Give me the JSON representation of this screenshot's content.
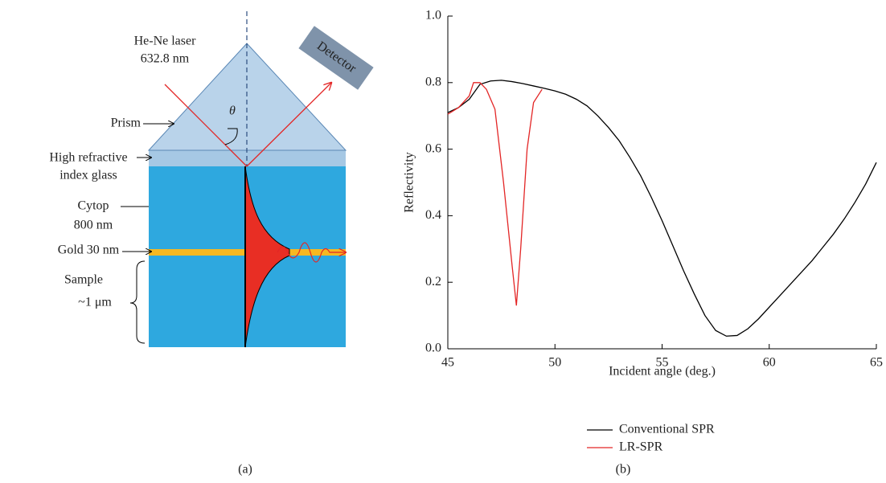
{
  "diagram": {
    "laser": "He-Ne laser",
    "wavelength": "632.8 nm",
    "detector": "Detector",
    "angle": "θ",
    "prism": "Prism",
    "glass_1": "High refractive",
    "glass_2": "index glass",
    "cytop_1": "Cytop",
    "cytop_2": "800 nm",
    "gold": "Gold 30 nm",
    "sample_1": "Sample",
    "sample_2": "~1 μm",
    "caption": "(a)"
  },
  "chart_data": {
    "type": "line",
    "xlabel": "Incident angle (deg.)",
    "ylabel": "Reflectivity",
    "caption": "(b)",
    "xlim": [
      45,
      65
    ],
    "xticks": [
      45,
      50,
      55,
      60,
      65
    ],
    "ylim": [
      0,
      1
    ],
    "yticks": [
      {
        "value": 0,
        "label": "0.0"
      },
      0.2,
      0.4,
      0.6,
      0.8,
      {
        "value": 1,
        "label": "1.0"
      }
    ],
    "legend": "bottom",
    "series": [
      {
        "name": "Conventional SPR",
        "color": "#000000",
        "x": [
          45,
          45.5,
          46,
          46.5,
          47,
          47.5,
          48,
          48.5,
          49,
          49.5,
          50,
          50.5,
          51,
          51.5,
          52,
          52.5,
          53,
          53.5,
          54,
          54.5,
          55,
          55.5,
          56,
          56.5,
          57,
          57.5,
          58,
          58.5,
          59,
          59.5,
          60,
          60.5,
          61,
          61.5,
          62,
          62.5,
          63,
          63.5,
          64,
          64.5,
          65
        ],
        "values": [
          0.71,
          0.725,
          0.75,
          0.795,
          0.805,
          0.807,
          0.803,
          0.797,
          0.79,
          0.783,
          0.775,
          0.765,
          0.75,
          0.73,
          0.7,
          0.665,
          0.625,
          0.575,
          0.52,
          0.455,
          0.385,
          0.31,
          0.235,
          0.165,
          0.1,
          0.055,
          0.038,
          0.04,
          0.06,
          0.09,
          0.125,
          0.16,
          0.195,
          0.23,
          0.265,
          0.305,
          0.345,
          0.39,
          0.44,
          0.495,
          0.56
        ]
      },
      {
        "name": "LR-SPR",
        "color": "#e32626",
        "x": [
          45,
          45.5,
          46,
          46.2,
          46.5,
          46.8,
          47.2,
          47.6,
          48,
          48.2,
          48.4,
          48.7,
          49,
          49.4
        ],
        "values": [
          0.705,
          0.725,
          0.76,
          0.8,
          0.8,
          0.78,
          0.72,
          0.5,
          0.25,
          0.13,
          0.3,
          0.6,
          0.74,
          0.78
        ]
      }
    ]
  }
}
